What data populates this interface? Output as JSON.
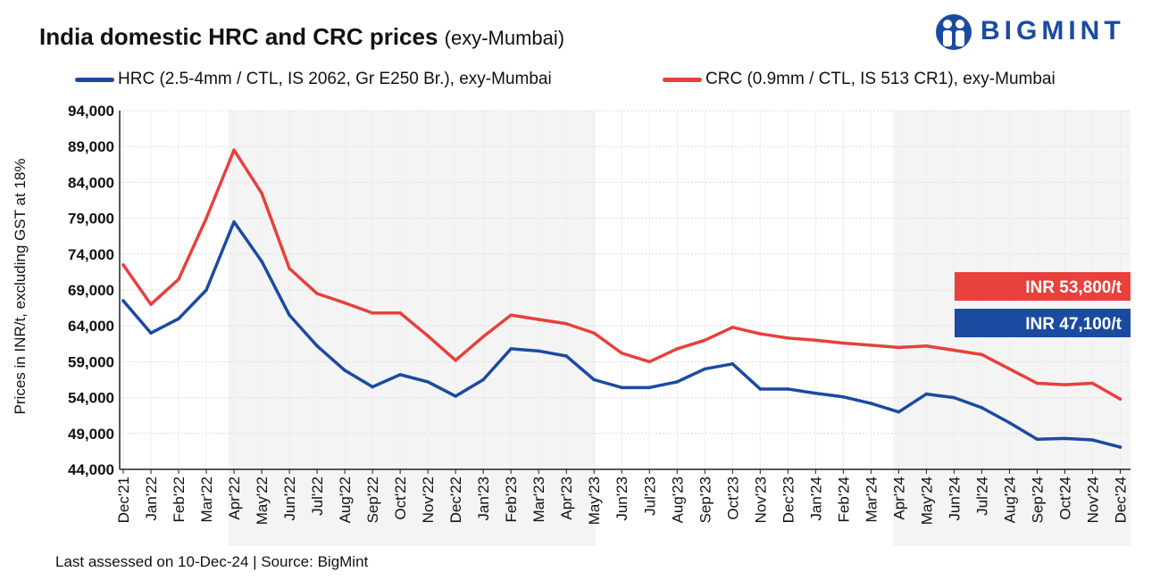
{
  "title": {
    "main": "India domestic HRC and CRC prices",
    "sub": "(exy-Mumbai)"
  },
  "logo": {
    "text": "BIGMINT"
  },
  "footer": "Last assessed on 10-Dec-24  |  Source: BigMint",
  "colors": {
    "hrc": "#1a4ba0",
    "crc": "#e8403c",
    "shade": "#f4f4f4",
    "grid": "#dcdcdc"
  },
  "chart_data": {
    "type": "line",
    "title": "India domestic HRC and CRC prices (exy-Mumbai)",
    "xlabel": "",
    "ylabel": "Prices in INR/t, excluding GST at 18%",
    "ylim": [
      44000,
      94000
    ],
    "yticks": [
      "44,000",
      "49,000",
      "54,000",
      "59,000",
      "64,000",
      "69,000",
      "74,000",
      "79,000",
      "84,000",
      "89,000",
      "94,000"
    ],
    "categories": [
      "Dec'21",
      "Jan'22",
      "Feb'22",
      "Mar'22",
      "Apr'22",
      "May'22",
      "Jun'22",
      "Jul'22",
      "Aug'22",
      "Sep'22",
      "Oct'22",
      "Nov'22",
      "Dec'22",
      "Jan'23",
      "Feb'23",
      "Mar'23",
      "Apr'23",
      "May'23",
      "Jun'23",
      "Jul'23",
      "Aug'23",
      "Sep'23",
      "Oct'23",
      "Nov'23",
      "Dec'23",
      "Jan'24",
      "Feb'24",
      "Mar'24",
      "Apr'24",
      "May'24",
      "Jun'24",
      "Jul'24",
      "Aug'24",
      "Sep'24",
      "Oct'24",
      "Nov'24",
      "Dec'24"
    ],
    "shaded_ranges": [
      [
        "Apr'22",
        "May'23"
      ],
      [
        "Apr'24",
        "Dec'24"
      ]
    ],
    "legend_placement": "top",
    "series": [
      {
        "name": "HRC (2.5-4mm / CTL, IS 2062, Gr E250 Br.), exy-Mumbai",
        "color": "#1a4ba0",
        "end_label": "INR 47,100/t",
        "values": [
          67500,
          63000,
          65000,
          69000,
          78500,
          73000,
          65500,
          61200,
          57800,
          55500,
          57200,
          56200,
          54200,
          56500,
          60800,
          60500,
          59800,
          56500,
          55400,
          55400,
          56200,
          58000,
          58700,
          55200,
          55200,
          54600,
          54100,
          53200,
          52000,
          54500,
          54000,
          52600,
          50500,
          48200,
          48300,
          48100,
          47100
        ]
      },
      {
        "name": "CRC (0.9mm / CTL, IS 513 CR1), exy-Mumbai",
        "color": "#e8403c",
        "end_label": "INR 53,800/t",
        "values": [
          72500,
          67000,
          70500,
          79000,
          88500,
          82500,
          72000,
          68500,
          67200,
          65800,
          65800,
          62600,
          59200,
          62500,
          65500,
          64900,
          64300,
          63000,
          60200,
          59000,
          60800,
          62000,
          63800,
          62900,
          62300,
          62000,
          61600,
          61300,
          61000,
          61200,
          60600,
          60000,
          58000,
          56000,
          55800,
          56000,
          53800
        ]
      }
    ]
  }
}
